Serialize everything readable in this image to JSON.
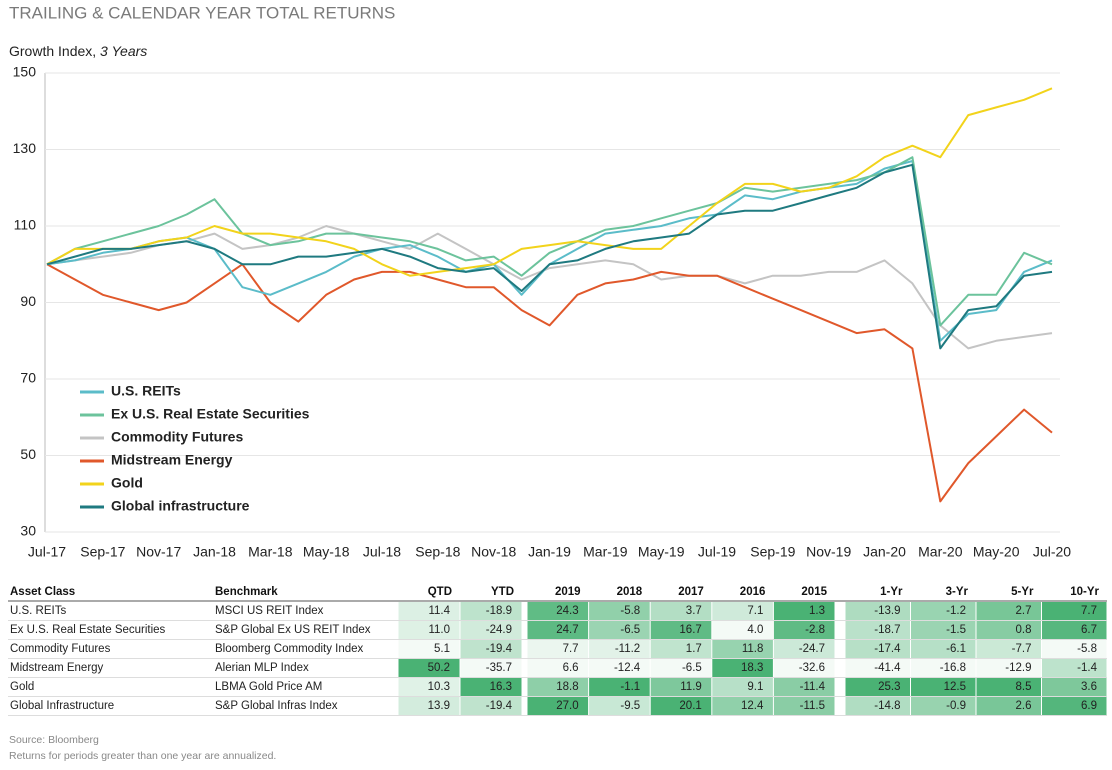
{
  "title": "TRAILING & CALENDAR YEAR TOTAL RETURNS",
  "chart_data": {
    "type": "line",
    "subtitle": "Growth Index,",
    "subtitle_emphasis": "3 Years",
    "categories": [
      "Jul-17",
      null,
      "Sep-17",
      null,
      "Nov-17",
      null,
      "Jan-18",
      null,
      "Mar-18",
      null,
      "May-18",
      null,
      "Jul-18",
      null,
      "Sep-18",
      null,
      "Nov-18",
      null,
      "Jan-19",
      null,
      "Mar-19",
      null,
      "May-19",
      null,
      "Jul-19",
      null,
      "Sep-19",
      null,
      "Nov-19",
      null,
      "Jan-20",
      null,
      "Mar-20",
      null,
      "May-20",
      null,
      "Jul-20"
    ],
    "series": [
      {
        "name": "U.S. REITs",
        "color": "#5bbcc9",
        "values": [
          100,
          101,
          103,
          104,
          106,
          107,
          104,
          94,
          92,
          95,
          98,
          102,
          104,
          105,
          102,
          98,
          100,
          92,
          100,
          104,
          108,
          109,
          110,
          112,
          113,
          118,
          117,
          119,
          120,
          121,
          125,
          127,
          80,
          87,
          88,
          98,
          101
        ]
      },
      {
        "name": "Ex U.S. Real Estate Securities",
        "color": "#6cc39c",
        "values": [
          100,
          104,
          106,
          108,
          110,
          113,
          117,
          108,
          105,
          106,
          108,
          108,
          107,
          106,
          104,
          101,
          102,
          97,
          103,
          106,
          109,
          110,
          112,
          114,
          116,
          120,
          119,
          120,
          121,
          122,
          124,
          128,
          84,
          92,
          92,
          103,
          100
        ]
      },
      {
        "name": "Commodity Futures",
        "color": "#c4c4c4",
        "values": [
          100,
          101,
          102,
          103,
          105,
          106,
          108,
          104,
          105,
          107,
          110,
          108,
          106,
          104,
          108,
          104,
          100,
          96,
          99,
          100,
          101,
          100,
          96,
          97,
          97,
          95,
          97,
          97,
          98,
          98,
          101,
          95,
          84,
          78,
          80,
          81,
          82
        ]
      },
      {
        "name": "Midstream Energy",
        "color": "#e0582b",
        "values": [
          100,
          96,
          92,
          90,
          88,
          90,
          95,
          100,
          90,
          85,
          92,
          96,
          98,
          98,
          96,
          94,
          94,
          88,
          84,
          92,
          95,
          96,
          98,
          97,
          97,
          94,
          91,
          88,
          85,
          82,
          83,
          78,
          38,
          48,
          55,
          62,
          56
        ]
      },
      {
        "name": "Gold",
        "color": "#f2d31b",
        "values": [
          100,
          104,
          104,
          104,
          106,
          107,
          110,
          108,
          108,
          107,
          106,
          104,
          100,
          97,
          98,
          99,
          100,
          104,
          105,
          106,
          105,
          104,
          104,
          110,
          116,
          121,
          121,
          119,
          120,
          123,
          128,
          131,
          128,
          139,
          141,
          143,
          146
        ]
      },
      {
        "name": "Global infrastructure",
        "color": "#1f7a80",
        "values": [
          100,
          102,
          104,
          104,
          105,
          106,
          104,
          100,
          100,
          102,
          102,
          103,
          104,
          102,
          99,
          98,
          99,
          93,
          100,
          101,
          104,
          106,
          107,
          108,
          113,
          114,
          114,
          116,
          118,
          120,
          124,
          126,
          78,
          88,
          89,
          97,
          98
        ]
      }
    ],
    "ylim": [
      30,
      150
    ],
    "yticks": [
      30,
      50,
      70,
      90,
      110,
      130,
      150
    ],
    "grid": true
  },
  "table": {
    "columns": [
      "Asset Class",
      "Benchmark",
      "QTD",
      "YTD",
      "2019",
      "2018",
      "2017",
      "2016",
      "2015",
      "1-Yr",
      "3-Yr",
      "5-Yr",
      "10-Yr"
    ],
    "rows": [
      [
        "U.S. REITs",
        "MSCI US REIT Index",
        "11.4",
        "-18.9",
        "24.3",
        "-5.8",
        "3.7",
        "7.1",
        "1.3",
        "-13.9",
        "-1.2",
        "2.7",
        "7.7"
      ],
      [
        "Ex U.S. Real Estate Securities",
        "S&P Global Ex US REIT Index",
        "11.0",
        "-24.9",
        "24.7",
        "-6.5",
        "16.7",
        "4.0",
        "-2.8",
        "-18.7",
        "-1.5",
        "0.8",
        "6.7"
      ],
      [
        "Commodity Futures",
        "Bloomberg Commodity Index",
        "5.1",
        "-19.4",
        "7.7",
        "-11.2",
        "1.7",
        "11.8",
        "-24.7",
        "-17.4",
        "-6.1",
        "-7.7",
        "-5.8"
      ],
      [
        "Midstream Energy",
        "Alerian MLP Index",
        "50.2",
        "-35.7",
        "6.6",
        "-12.4",
        "-6.5",
        "18.3",
        "-32.6",
        "-41.4",
        "-16.8",
        "-12.9",
        "-1.4"
      ],
      [
        "Gold",
        "LBMA Gold Price AM",
        "10.3",
        "16.3",
        "18.8",
        "-1.1",
        "11.9",
        "9.1",
        "-11.4",
        "25.3",
        "12.5",
        "8.5",
        "3.6"
      ],
      [
        "Global Infrastructure",
        "S&P Global Infras Index",
        "13.9",
        "-19.4",
        "27.0",
        "-9.5",
        "20.1",
        "12.4",
        "-11.5",
        "-14.8",
        "-0.9",
        "2.6",
        "6.9"
      ]
    ]
  },
  "source": "Source: Bloomberg",
  "note": "Returns for periods greater than one year are annualized."
}
